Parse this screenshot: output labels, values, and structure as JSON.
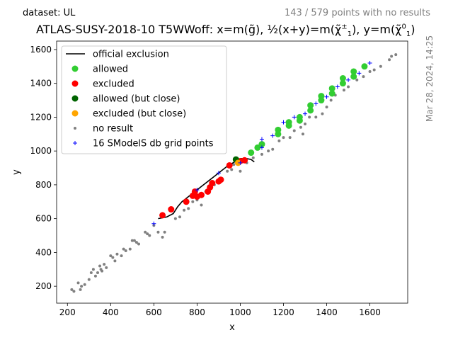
{
  "header": {
    "dataset": "dataset: UL",
    "counter": "143 / 579 points with no results",
    "title": "ATLAS-SUSY-2018-10 T5WWoff: x=m(g̃), ½(x+y)=m(χ̃₁±), y=m(χ̃₁⁰)",
    "title_pre": "ATLAS-SUSY-2018-10 T5WWoff: x=m(",
    "title_g": "g̃",
    "title_mid1": "), ",
    "title_half": "½",
    "title_mid2": "(x+y)=m(",
    "title_chi": "χ̃",
    "title_pm": "±",
    "title_1a": "1",
    "title_mid3": "), y=m(",
    "title_chi2": "χ̃",
    "title_0": "0",
    "title_1b": "1",
    "title_end": ")",
    "timestamp": "Mar 28, 2024, 14:25"
  },
  "colors": {
    "allowed": "#32cd32",
    "excluded": "#ff0000",
    "allowed_close": "#006400",
    "excluded_close": "#ffa500",
    "no_result": "#808080",
    "grid_points": "#0000ff",
    "official": "#000000"
  },
  "chart_data": {
    "type": "scatter",
    "xlabel": "x",
    "ylabel": "y",
    "xlim": [
      150,
      1775
    ],
    "ylim": [
      100,
      1650
    ],
    "xticks": [
      200,
      400,
      600,
      800,
      1000,
      1200,
      1400,
      1600
    ],
    "yticks": [
      200,
      400,
      600,
      800,
      1000,
      1200,
      1400,
      1600
    ],
    "legend_position": "top-left",
    "legend": [
      {
        "label": "official exclusion",
        "kind": "line",
        "color": "#000000"
      },
      {
        "label": "allowed",
        "kind": "dot",
        "color": "#32cd32"
      },
      {
        "label": "excluded",
        "kind": "dot",
        "color": "#ff0000"
      },
      {
        "label": "allowed (but close)",
        "kind": "dot",
        "color": "#006400"
      },
      {
        "label": "excluded (but close)",
        "kind": "dot",
        "color": "#ffa500"
      },
      {
        "label": "no result",
        "kind": "small",
        "color": "#808080"
      },
      {
        "label": "16 SModelS db grid points",
        "kind": "plus",
        "color": "#0000ff"
      }
    ],
    "official_exclusion": [
      [
        620,
        600
      ],
      [
        660,
        610
      ],
      [
        690,
        630
      ],
      [
        710,
        670
      ],
      [
        730,
        700
      ],
      [
        760,
        730
      ],
      [
        790,
        760
      ],
      [
        820,
        790
      ],
      [
        850,
        820
      ],
      [
        880,
        850
      ],
      [
        910,
        880
      ],
      [
        940,
        910
      ],
      [
        980,
        940
      ],
      [
        1000,
        955
      ],
      [
        1030,
        955
      ],
      [
        1050,
        950
      ],
      [
        1065,
        935
      ]
    ],
    "allowed": [
      [
        1050,
        990
      ],
      [
        1100,
        1040
      ],
      [
        1175,
        1100
      ],
      [
        1175,
        1125
      ],
      [
        1225,
        1150
      ],
      [
        1225,
        1170
      ],
      [
        1275,
        1180
      ],
      [
        1275,
        1200
      ],
      [
        1325,
        1240
      ],
      [
        1325,
        1270
      ],
      [
        1375,
        1300
      ],
      [
        1375,
        1325
      ],
      [
        1425,
        1340
      ],
      [
        1425,
        1370
      ],
      [
        1475,
        1400
      ],
      [
        1475,
        1430
      ],
      [
        1525,
        1440
      ],
      [
        1525,
        1470
      ],
      [
        1575,
        1500
      ],
      [
        1080,
        1020
      ]
    ],
    "excluded": [
      [
        640,
        620
      ],
      [
        680,
        655
      ],
      [
        750,
        700
      ],
      [
        780,
        735
      ],
      [
        790,
        760
      ],
      [
        820,
        740
      ],
      [
        850,
        760
      ],
      [
        860,
        785
      ],
      [
        870,
        810
      ],
      [
        900,
        820
      ],
      [
        910,
        830
      ],
      [
        950,
        915
      ],
      [
        1000,
        940
      ],
      [
        1020,
        945
      ],
      [
        800,
        730
      ]
    ],
    "allowed_close": [
      [
        980,
        950
      ]
    ],
    "excluded_close": [
      [
        990,
        930
      ]
    ],
    "no_result": [
      [
        220,
        180
      ],
      [
        230,
        170
      ],
      [
        250,
        220
      ],
      [
        260,
        180
      ],
      [
        265,
        200
      ],
      [
        280,
        210
      ],
      [
        300,
        240
      ],
      [
        310,
        280
      ],
      [
        320,
        300
      ],
      [
        330,
        260
      ],
      [
        340,
        280
      ],
      [
        350,
        320
      ],
      [
        355,
        300
      ],
      [
        360,
        290
      ],
      [
        370,
        330
      ],
      [
        380,
        310
      ],
      [
        400,
        380
      ],
      [
        410,
        370
      ],
      [
        420,
        350
      ],
      [
        430,
        390
      ],
      [
        450,
        380
      ],
      [
        460,
        420
      ],
      [
        470,
        410
      ],
      [
        490,
        420
      ],
      [
        500,
        470
      ],
      [
        510,
        470
      ],
      [
        520,
        460
      ],
      [
        530,
        450
      ],
      [
        560,
        520
      ],
      [
        570,
        510
      ],
      [
        580,
        500
      ],
      [
        600,
        560
      ],
      [
        620,
        520
      ],
      [
        640,
        490
      ],
      [
        650,
        520
      ],
      [
        700,
        600
      ],
      [
        720,
        610
      ],
      [
        740,
        650
      ],
      [
        760,
        660
      ],
      [
        780,
        700
      ],
      [
        800,
        710
      ],
      [
        820,
        680
      ],
      [
        840,
        760
      ],
      [
        860,
        780
      ],
      [
        880,
        800
      ],
      [
        900,
        820
      ],
      [
        940,
        880
      ],
      [
        960,
        890
      ],
      [
        970,
        920
      ],
      [
        1000,
        880
      ],
      [
        1030,
        930
      ],
      [
        1060,
        960
      ],
      [
        1100,
        980
      ],
      [
        1130,
        1000
      ],
      [
        1150,
        1010
      ],
      [
        1180,
        1060
      ],
      [
        1200,
        1080
      ],
      [
        1230,
        1080
      ],
      [
        1250,
        1120
      ],
      [
        1280,
        1140
      ],
      [
        1290,
        1100
      ],
      [
        1300,
        1160
      ],
      [
        1320,
        1200
      ],
      [
        1350,
        1200
      ],
      [
        1380,
        1220
      ],
      [
        1400,
        1260
      ],
      [
        1420,
        1300
      ],
      [
        1440,
        1330
      ],
      [
        1480,
        1360
      ],
      [
        1500,
        1380
      ],
      [
        1540,
        1420
      ],
      [
        1570,
        1440
      ],
      [
        1600,
        1470
      ],
      [
        1620,
        1480
      ],
      [
        1650,
        1500
      ],
      [
        1690,
        1540
      ],
      [
        1700,
        1560
      ],
      [
        1720,
        1570
      ]
    ],
    "grid_points": [
      [
        600,
        570
      ],
      [
        800,
        770
      ],
      [
        900,
        870
      ],
      [
        1000,
        930
      ],
      [
        1100,
        1070
      ],
      [
        1150,
        1090
      ],
      [
        1200,
        1170
      ],
      [
        1250,
        1200
      ],
      [
        1300,
        1220
      ],
      [
        1350,
        1280
      ],
      [
        1400,
        1320
      ],
      [
        1450,
        1380
      ],
      [
        1500,
        1420
      ],
      [
        1550,
        1460
      ],
      [
        1600,
        1520
      ],
      [
        1100,
        1020
      ]
    ]
  }
}
